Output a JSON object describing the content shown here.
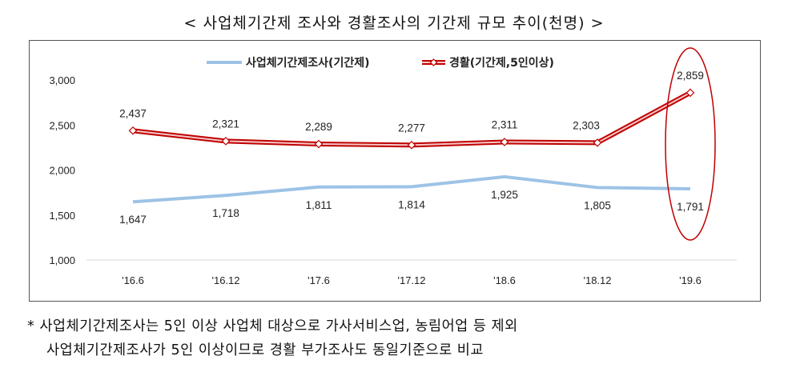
{
  "title": "< 사업체기간제 조사와 경활조사의 기간제 규모 추이(천명) >",
  "chart_data": {
    "type": "line",
    "categories": [
      "'16.6",
      "'16.12",
      "'17.6",
      "'17.12",
      "'18.6",
      "'18.12",
      "'19.6"
    ],
    "ylim": [
      1000,
      3000
    ],
    "yticks": [
      "1,000",
      "1,500",
      "2,000",
      "2,500",
      "3,000"
    ],
    "ytick_values": [
      1000,
      1500,
      2000,
      2500,
      3000
    ],
    "legend_position": "top-center",
    "series": [
      {
        "name": "사업체기간제조사(기간제)",
        "color": "#9dc3e6",
        "values": [
          1647,
          1718,
          1811,
          1814,
          1925,
          1805,
          1791
        ],
        "labels": [
          "1,647",
          "1,718",
          "1,811",
          "1,814",
          "1,925",
          "1,805",
          "1,791"
        ]
      },
      {
        "name": "경활(기간제,5인이상)",
        "color": "#c00000",
        "values": [
          2437,
          2321,
          2289,
          2277,
          2311,
          2303,
          2859
        ],
        "labels": [
          "2,437",
          "2,321",
          "2,289",
          "2,277",
          "2,311",
          "2,303",
          "2,859"
        ]
      }
    ],
    "annotation": "red ellipse highlighting '19.6"
  },
  "notes": {
    "line1": "* 사업체기간제조사는 5인 이상 사업체 대상으로 가사서비스업, 농림어업 등 제외",
    "line2": "사업체기간제조사가 5인 이상이므로 경활 부가조사도 동일기준으로 비교"
  }
}
